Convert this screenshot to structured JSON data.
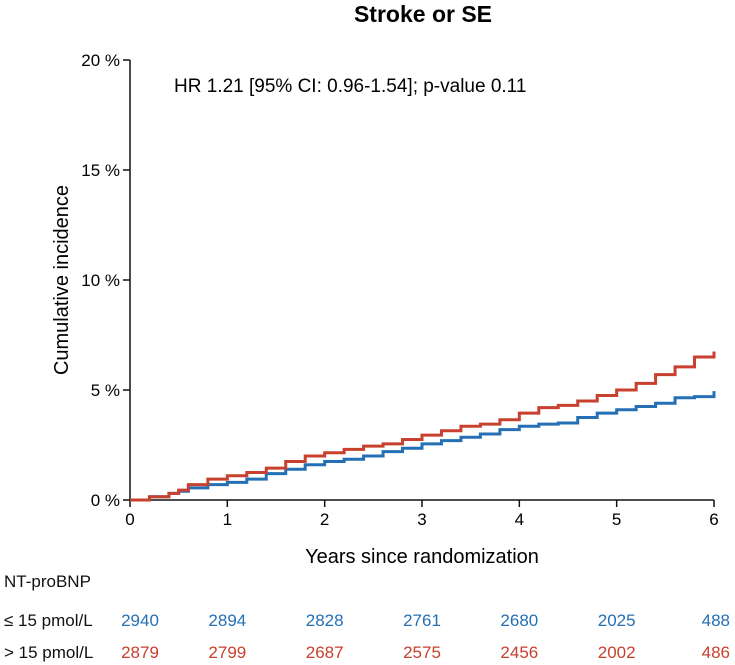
{
  "chart_data": {
    "type": "line",
    "title": "Stroke or SE",
    "xlabel": "Years since randomization",
    "ylabel": "Cumulative incidence",
    "xlim": [
      0,
      6
    ],
    "ylim": [
      0,
      20
    ],
    "x_ticks": [
      0,
      1,
      2,
      3,
      4,
      5,
      6
    ],
    "y_ticks": [
      0,
      5,
      10,
      15,
      20
    ],
    "y_tick_labels": [
      "0 %",
      "5 %",
      "10 %",
      "15 %",
      "20 %"
    ],
    "grid": false,
    "annotation": "HR 1.21 [95% CI: 0.96-1.54]; p-value 0.11",
    "line_style": "step",
    "series": [
      {
        "name": "≤ 15 pmol/L",
        "color": "#2570b5",
        "x": [
          0,
          0.2,
          0.4,
          0.5,
          0.6,
          0.8,
          1.0,
          1.2,
          1.4,
          1.6,
          1.8,
          2.0,
          2.2,
          2.4,
          2.6,
          2.8,
          3.0,
          3.2,
          3.4,
          3.6,
          3.8,
          4.0,
          4.2,
          4.4,
          4.6,
          4.8,
          5.0,
          5.2,
          5.4,
          5.6,
          5.8,
          6.0
        ],
        "y": [
          0,
          0.15,
          0.3,
          0.4,
          0.55,
          0.7,
          0.8,
          0.95,
          1.2,
          1.4,
          1.6,
          1.75,
          1.85,
          2.0,
          2.2,
          2.35,
          2.55,
          2.7,
          2.85,
          3.0,
          3.2,
          3.35,
          3.45,
          3.5,
          3.75,
          3.95,
          4.1,
          4.25,
          4.4,
          4.65,
          4.7,
          4.95
        ]
      },
      {
        "name": "> 15 pmol/L",
        "color": "#c8402e",
        "x": [
          0,
          0.2,
          0.4,
          0.5,
          0.6,
          0.8,
          1.0,
          1.2,
          1.4,
          1.6,
          1.8,
          2.0,
          2.2,
          2.4,
          2.6,
          2.8,
          3.0,
          3.2,
          3.4,
          3.6,
          3.8,
          4.0,
          4.2,
          4.4,
          4.6,
          4.8,
          5.0,
          5.2,
          5.4,
          5.6,
          5.8,
          6.0
        ],
        "y": [
          0,
          0.15,
          0.3,
          0.45,
          0.7,
          0.95,
          1.1,
          1.25,
          1.45,
          1.75,
          2.0,
          2.15,
          2.3,
          2.45,
          2.55,
          2.75,
          2.95,
          3.15,
          3.35,
          3.45,
          3.65,
          3.95,
          4.2,
          4.3,
          4.5,
          4.75,
          5.0,
          5.3,
          5.7,
          6.05,
          6.5,
          6.75
        ]
      }
    ],
    "risk_table": {
      "header": "NT-proBNP",
      "rows": [
        {
          "label": "≤ 15 pmol/L",
          "color": "#2570b5",
          "values": [
            "2940",
            "2894",
            "2828",
            "2761",
            "2680",
            "2025",
            "488"
          ]
        },
        {
          "label": "> 15 pmol/L",
          "color": "#c8402e",
          "values": [
            "2879",
            "2799",
            "2687",
            "2575",
            "2456",
            "2002",
            "486"
          ]
        }
      ]
    }
  }
}
